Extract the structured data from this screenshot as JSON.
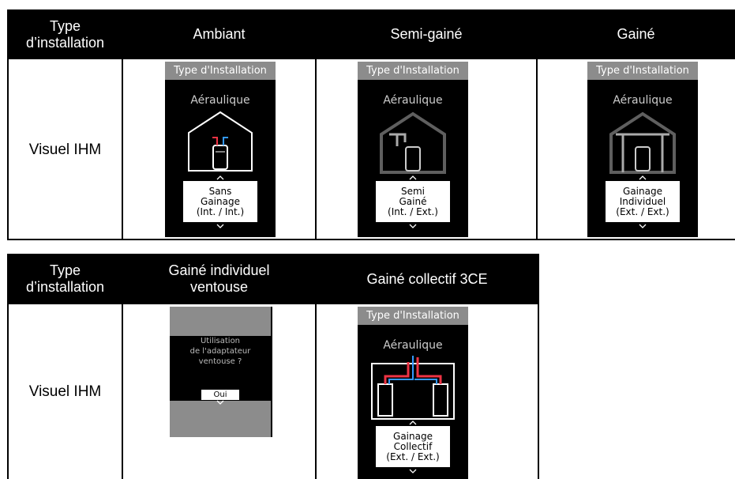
{
  "tables": [
    {
      "header": [
        [
          "Type",
          "d’installation"
        ],
        [
          "Ambiant"
        ],
        [
          "Semi-gainé"
        ],
        [
          "Gainé"
        ]
      ],
      "row_label": "Visuel IHM",
      "screens": [
        {
          "title": "Type d'Installation",
          "subtitle": "Aéraulique",
          "option": [
            "Sans",
            "Gainage",
            "(Int. / Int.)"
          ]
        },
        {
          "title": "Type d'Installation",
          "subtitle": "Aéraulique",
          "option": [
            "Semi",
            "Gainé",
            "(Int. / Ext.)"
          ]
        },
        {
          "title": "Type d'Installation",
          "subtitle": "Aéraulique",
          "option": [
            "Gainage",
            "Individuel",
            "(Ext. / Ext.)"
          ]
        }
      ]
    },
    {
      "header": [
        [
          "Type",
          "d’installation"
        ],
        [
          "Gainé individuel",
          "ventouse"
        ],
        [
          "Gainé collectif 3CE"
        ]
      ],
      "row_label": "Visuel IHM",
      "screens": [
        {
          "prompt": [
            "Utilisation",
            "de l'adaptateur",
            "ventouse ?"
          ],
          "button": "Oui"
        },
        {
          "title": "Type d'Installation",
          "subtitle": "Aéraulique",
          "option": [
            "Gainage",
            "Collectif",
            "(Ext. / Ext.)"
          ]
        }
      ]
    }
  ]
}
